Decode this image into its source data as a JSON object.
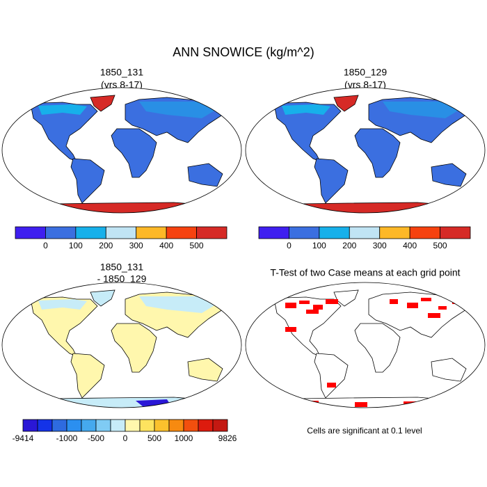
{
  "title": "ANN SNOWICE (kg/m^2)",
  "panels": [
    {
      "title": "1850_131",
      "subtitle": "(yrs 8-17)"
    },
    {
      "title": "1850_129",
      "subtitle": "(yrs 8-17)"
    },
    {
      "title": "1850_131",
      "subtitle": "- 1850_129"
    },
    {
      "title": "T-Test of two Case means at each grid point",
      "note": "Cells are significant at 0.1 level"
    }
  ],
  "colorbars": [
    {
      "colors": [
        "#3f1ff0",
        "#3b6fe0",
        "#17b0ea",
        "#c0e4f4",
        "#fdb827",
        "#f6420f",
        "#d62a26"
      ],
      "labels": [
        null,
        "0",
        "100",
        "200",
        "300",
        "400",
        "500",
        null
      ]
    },
    {
      "colors": [
        "#3f1ff0",
        "#3b6fe0",
        "#17b0ea",
        "#c0e4f4",
        "#fdb827",
        "#f6420f",
        "#d62a26"
      ],
      "labels": [
        null,
        "0",
        "100",
        "200",
        "300",
        "400",
        "500",
        null
      ]
    },
    {
      "colors": [
        "#2a17d6",
        "#1433e8",
        "#2e6be0",
        "#2b8ff0",
        "#45a9ee",
        "#7fcbf4",
        "#c7ecf8",
        "#fff7ad",
        "#fde35f",
        "#fbc12d",
        "#f78a10",
        "#f24f0e",
        "#dd1b0e",
        "#c41912"
      ],
      "labels": [
        "-9414",
        null,
        null,
        "-1000",
        null,
        "-500",
        null,
        "0",
        null,
        "500",
        null,
        "1000",
        null,
        null,
        "9826"
      ]
    }
  ]
}
